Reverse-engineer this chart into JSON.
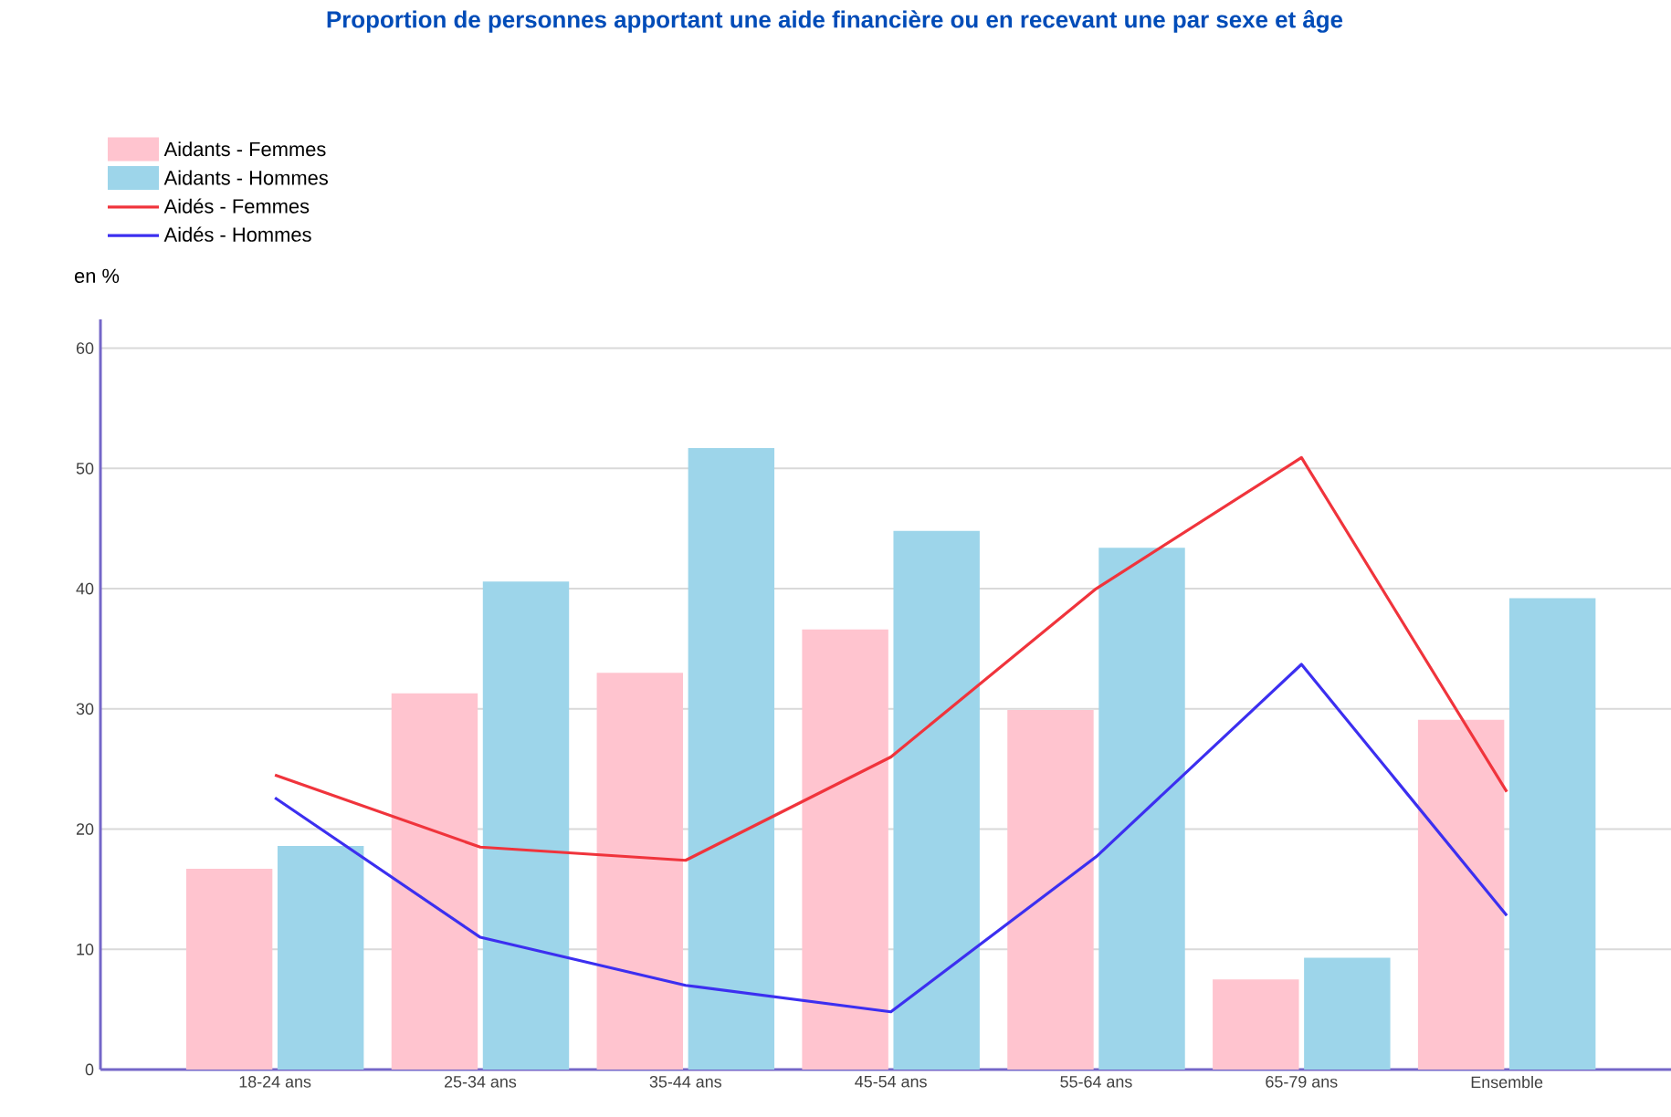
{
  "chart_data": {
    "type": "bar",
    "title": "Proportion de personnes apportant une aide financière ou en recevant une par sexe et âge",
    "ylabel": "en %",
    "categories": [
      "18-24 ans",
      "25-34 ans",
      "35-44 ans",
      "45-54 ans",
      "55-64 ans",
      "65-79 ans",
      "Ensemble"
    ],
    "series": [
      {
        "name": "Aidants - Femmes",
        "color": "#ffc4cf",
        "values": [
          16.7,
          31.3,
          33.0,
          36.6,
          29.9,
          7.5,
          29.1
        ]
      },
      {
        "name": "Aidants - Hommes",
        "color": "#9dd5ea",
        "values": [
          18.6,
          40.6,
          51.7,
          44.8,
          43.4,
          9.3,
          39.2
        ]
      },
      {
        "name": "Aidés - Femmes",
        "type": "line",
        "color": "#f0343c",
        "values": [
          24.5,
          18.5,
          17.4,
          26.0,
          40.0,
          50.9,
          23.1
        ]
      },
      {
        "name": "Aidés - Hommes",
        "type": "line",
        "color": "#3c2ff0",
        "values": [
          22.6,
          11.0,
          7.0,
          4.8,
          17.7,
          33.7,
          12.8
        ]
      }
    ],
    "ylim": [
      0,
      60
    ],
    "yticks": [
      0,
      10,
      20,
      30,
      40,
      50,
      60
    ],
    "grid": "y",
    "legend": "top left"
  }
}
